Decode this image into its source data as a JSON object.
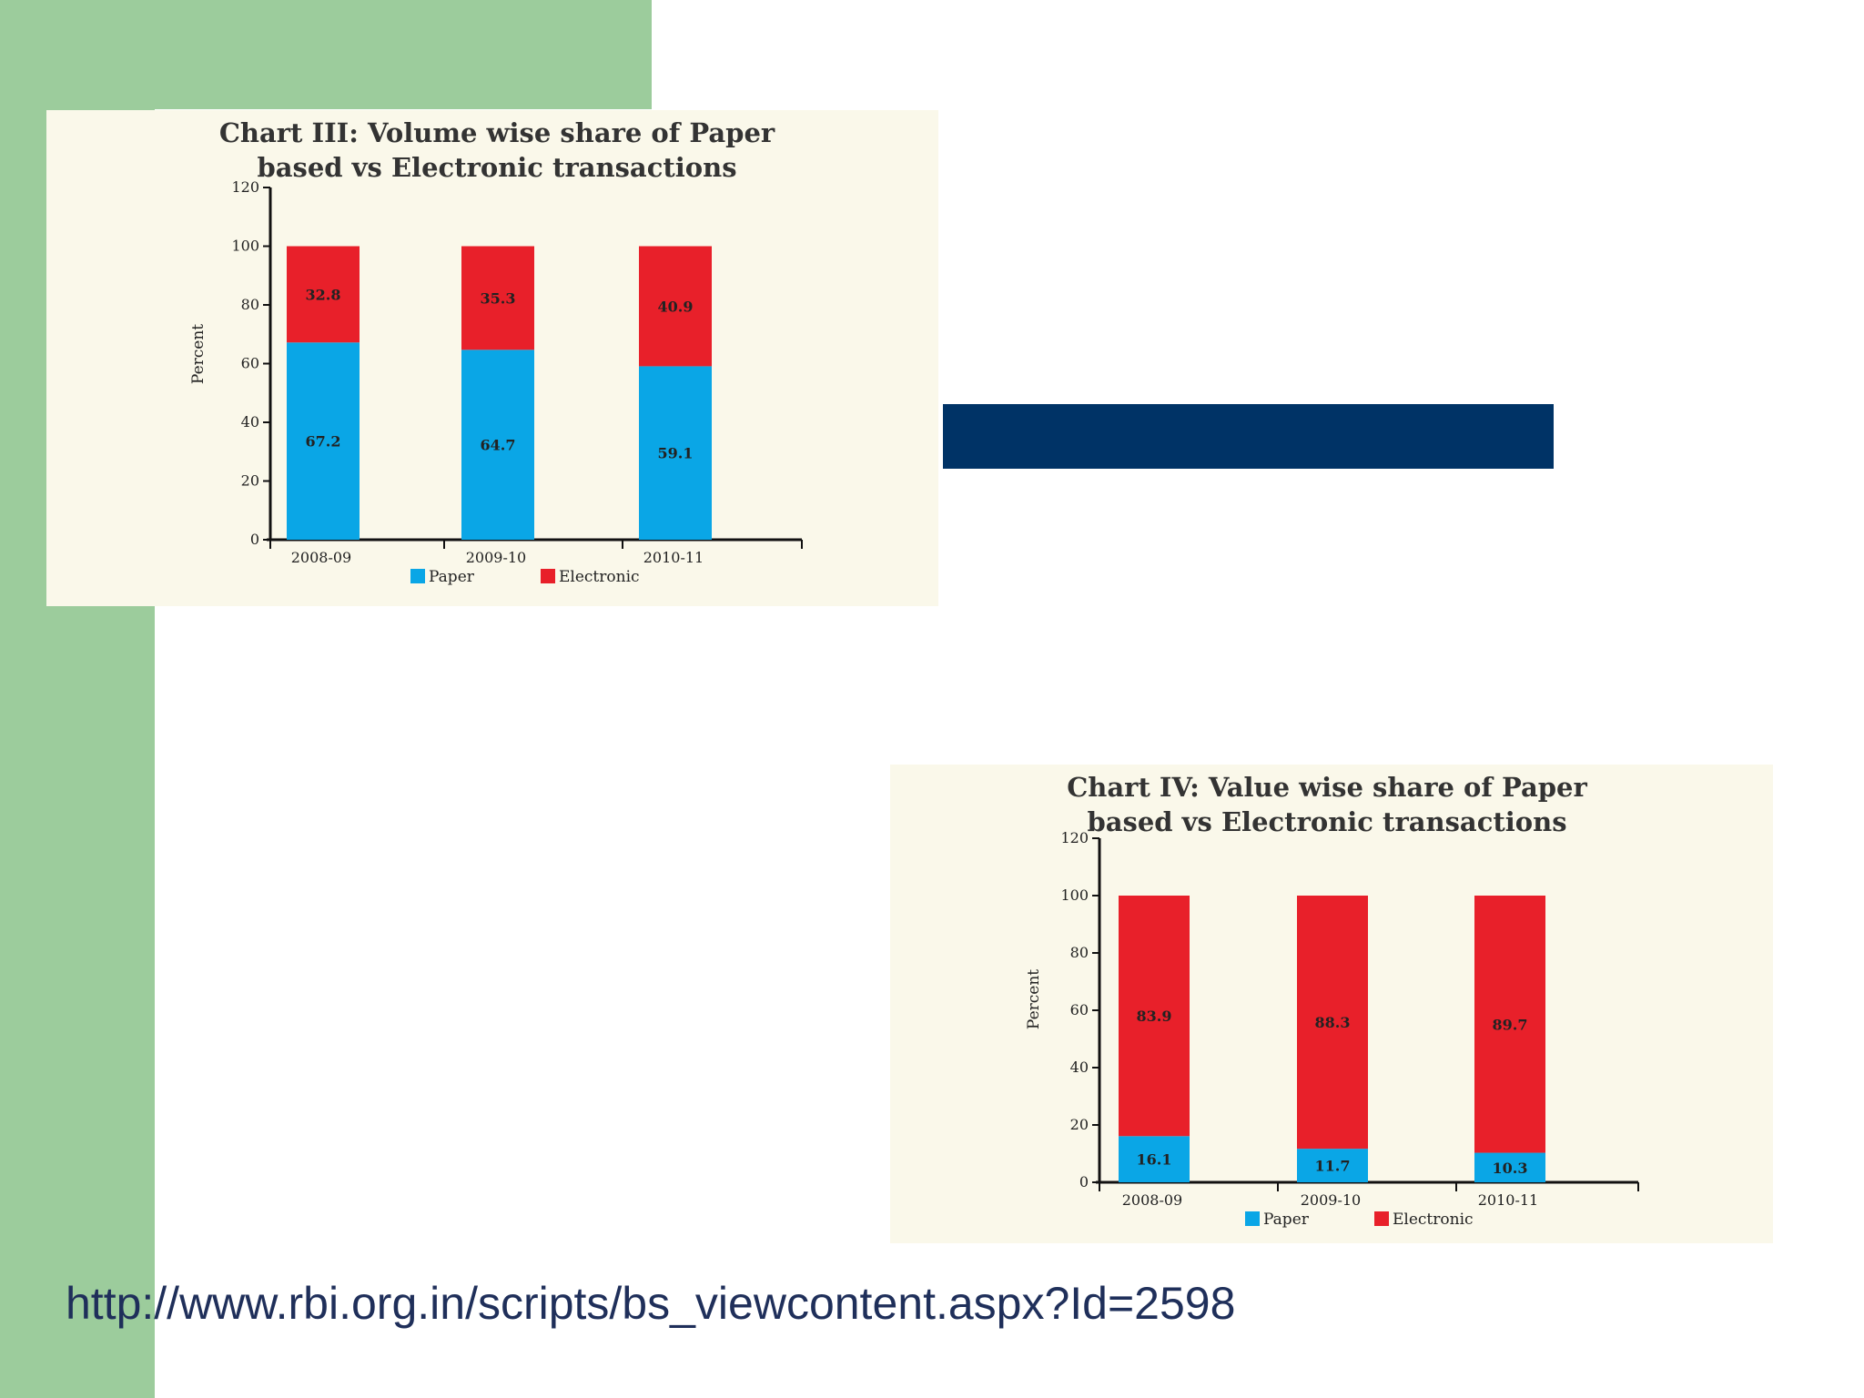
{
  "colors": {
    "paper": "#0aa6e6",
    "electronic": "#e8202a",
    "background": "#faf8ea"
  },
  "legend": {
    "paper": "Paper",
    "electronic": "Electronic"
  },
  "chart_data": [
    {
      "id": "chart3",
      "type": "bar",
      "stacked": true,
      "title": [
        "Chart III: Volume wise share of Paper",
        "based vs Electronic transactions"
      ],
      "ylabel": "Percent",
      "ylim": [
        0,
        120
      ],
      "yticks": [
        0,
        20,
        40,
        60,
        80,
        100,
        120
      ],
      "categories": [
        "2008-09",
        "2009-10",
        "2010-11"
      ],
      "series": [
        {
          "name": "Paper",
          "values": [
            67.2,
            64.7,
            59.1
          ],
          "labels": [
            "67.2",
            "64.7",
            "59.1"
          ]
        },
        {
          "name": "Electronic",
          "values": [
            32.8,
            35.3,
            40.9
          ],
          "labels": [
            "32.8",
            "35.3",
            "40.9"
          ]
        }
      ]
    },
    {
      "id": "chart4",
      "type": "bar",
      "stacked": true,
      "title": [
        "Chart IV: Value wise share of Paper",
        "based vs Electronic transactions"
      ],
      "ylabel": "Percent",
      "ylim": [
        0,
        120
      ],
      "yticks": [
        0,
        20,
        40,
        60,
        80,
        100,
        120
      ],
      "categories": [
        "2008-09",
        "2009-10",
        "2010-11"
      ],
      "series": [
        {
          "name": "Paper",
          "values": [
            16.1,
            11.7,
            10.3
          ],
          "labels": [
            "16.1",
            "11.7",
            "10.3"
          ]
        },
        {
          "name": "Electronic",
          "values": [
            83.9,
            88.3,
            89.7
          ],
          "labels": [
            "83.9",
            "88.3",
            "89.7"
          ]
        }
      ]
    }
  ],
  "source": {
    "url": "http://www.rbi.org.in/scripts/bs_viewcontent.aspx?Id=2598"
  }
}
